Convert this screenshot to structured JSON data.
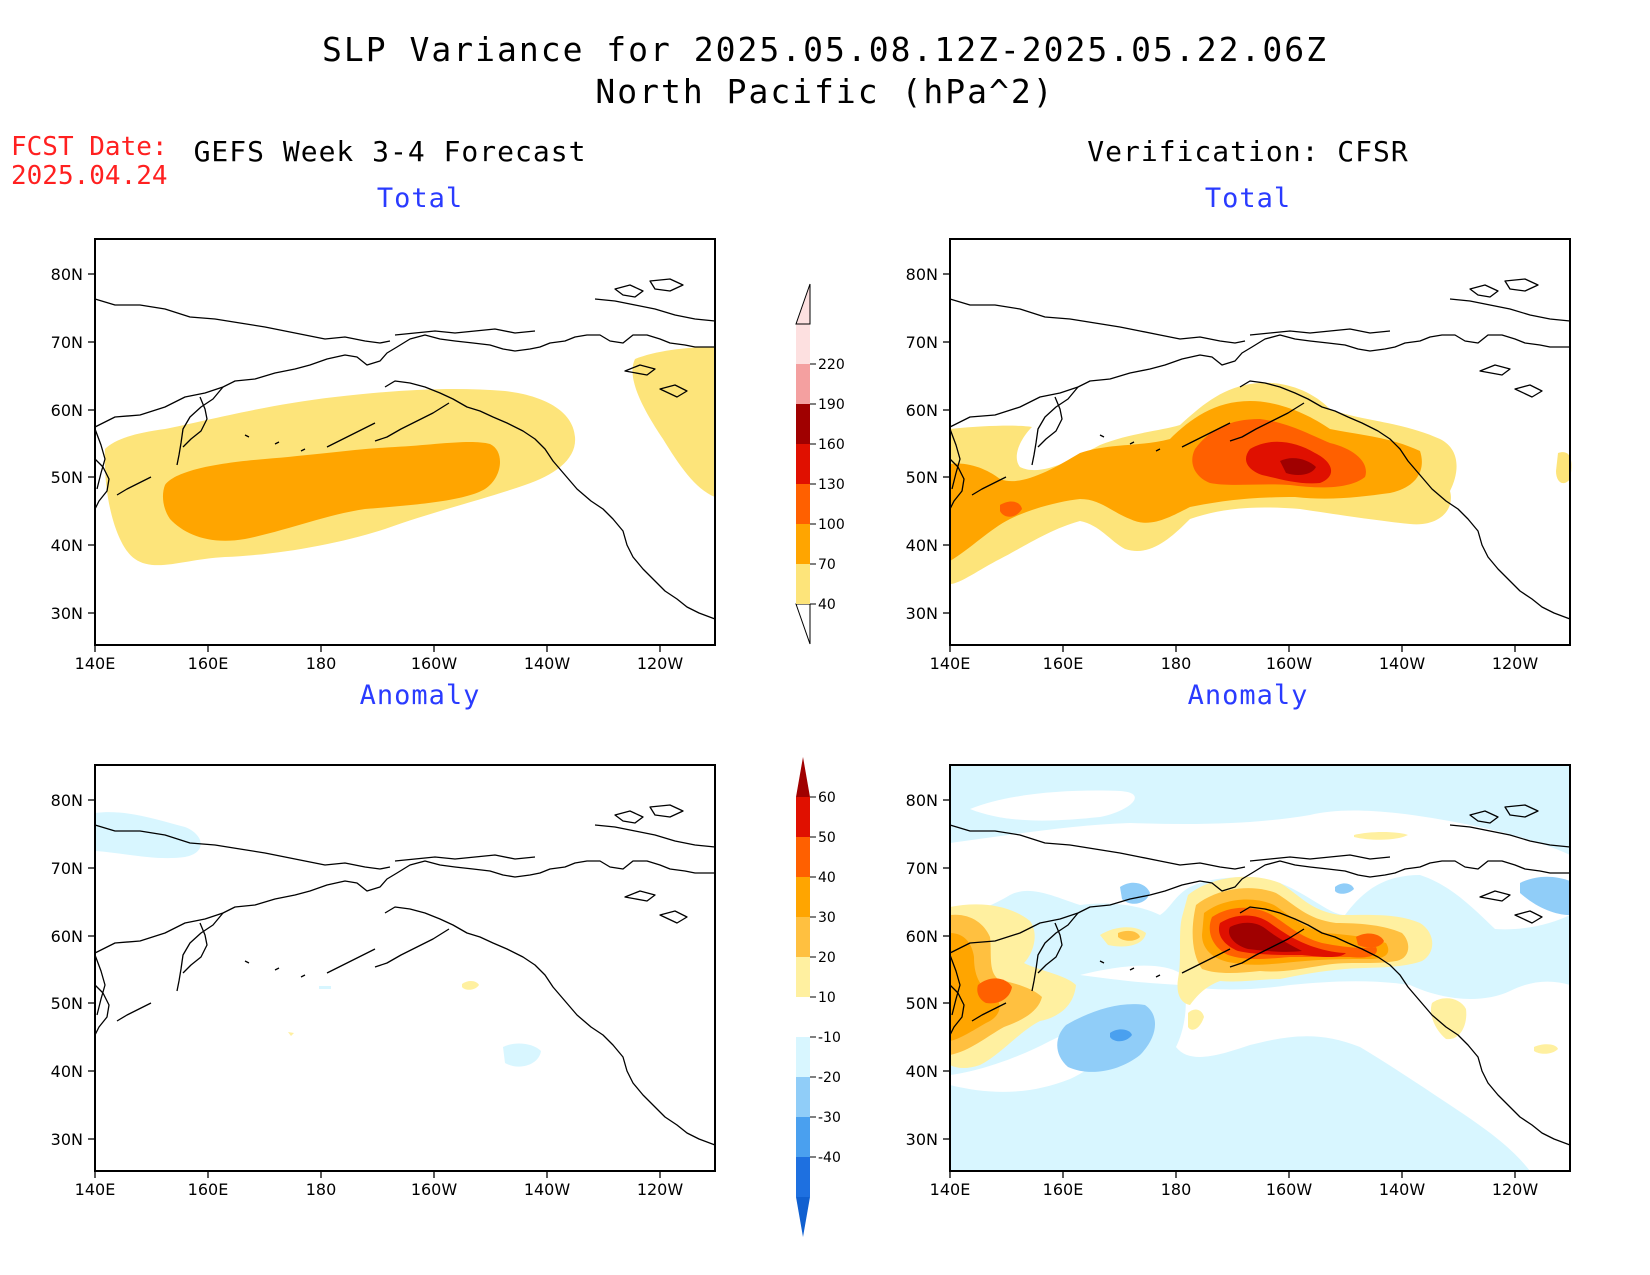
{
  "header": {
    "title_line1": "SLP Variance for 2025.05.08.12Z-2025.05.22.06Z",
    "title_line2": "North Pacific (hPa^2)",
    "fcst_date_label": "FCST Date:",
    "fcst_date_value": "2025.04.24"
  },
  "columns": {
    "left_title": "GEFS Week 3-4 Forecast",
    "right_title": "Verification: CFSR"
  },
  "rows": {
    "top_label": "Total",
    "bottom_label": "Anomaly"
  },
  "axes": {
    "lat_labels": [
      "80N",
      "70N",
      "60N",
      "50N",
      "40N",
      "30N"
    ],
    "lon_labels": [
      "140E",
      "160E",
      "180",
      "160W",
      "140W",
      "120W"
    ]
  },
  "colorbars": {
    "total": {
      "levels": [
        "40",
        "70",
        "100",
        "130",
        "160",
        "190",
        "220"
      ],
      "colors": [
        "#fde47a",
        "#ffa500",
        "#ff6000",
        "#e01000",
        "#a00000",
        "#f4a0a0",
        "#fde0e0"
      ]
    },
    "anomaly": {
      "levels": [
        "60",
        "50",
        "40",
        "30",
        "20",
        "10",
        "-10",
        "-20",
        "-30",
        "-40"
      ],
      "colors": [
        "#a00000",
        "#e01000",
        "#ff6000",
        "#ffa500",
        "#ffc040",
        "#fff0a0",
        "#ffffff",
        "#d8f6ff",
        "#90cdf8",
        "#4aa0ef",
        "#1e70e0",
        "#1060d0"
      ]
    },
    "land_outline_color": "#000000"
  }
}
